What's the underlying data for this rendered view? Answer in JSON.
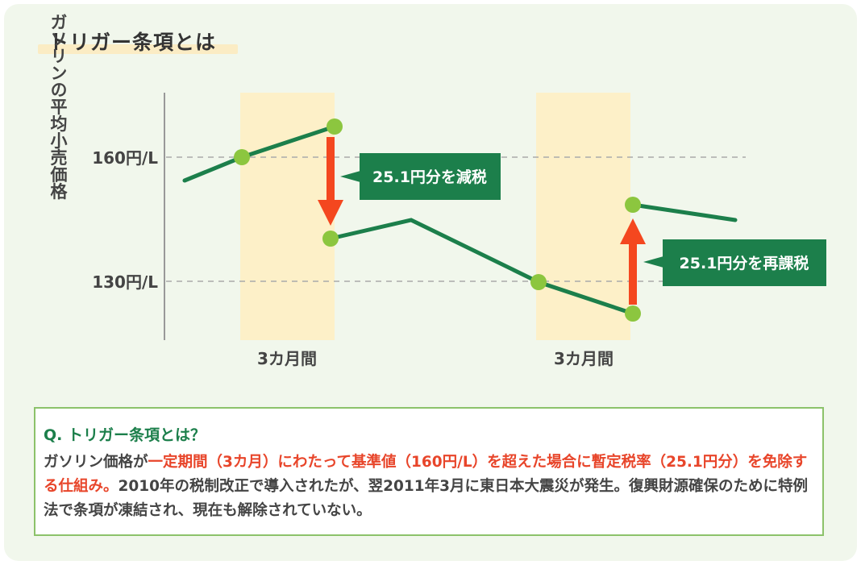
{
  "title": "トリガー条項とは",
  "diagram": {
    "y_axis_label": "ガソリンの平均小売価格",
    "ref_lines": [
      {
        "label": "160円/L",
        "value": 160
      },
      {
        "label": "130円/L",
        "value": 130
      }
    ],
    "periods": [
      {
        "label": "3カ月間"
      },
      {
        "label": "3カ月間"
      }
    ],
    "callouts": {
      "decrease": "25.1円分を減税",
      "increase": "25.1円分を再課税"
    },
    "colors": {
      "line": "#1c7f4b",
      "point": "#8cc63f",
      "arrow": "#f4471f",
      "period_band": "#fdf0c8",
      "callout_bg": "#1c7f4b",
      "ref_line": "#aaaaaa"
    }
  },
  "question": {
    "heading": "Q. トリガー条項とは？",
    "body_pre": "ガソリン価格が",
    "body_highlight": "一定期間（3カ月）にわたって基準値（160円/L）を超えた場合に暫定税率（25.1円分）を免除する仕組み。",
    "body_post": "2010年の税制改正で導入されたが、翌2011年3月に東日本大震災が発生。復興財源確保のために特例法で条項が凍結され、現在も解除されていない。"
  }
}
